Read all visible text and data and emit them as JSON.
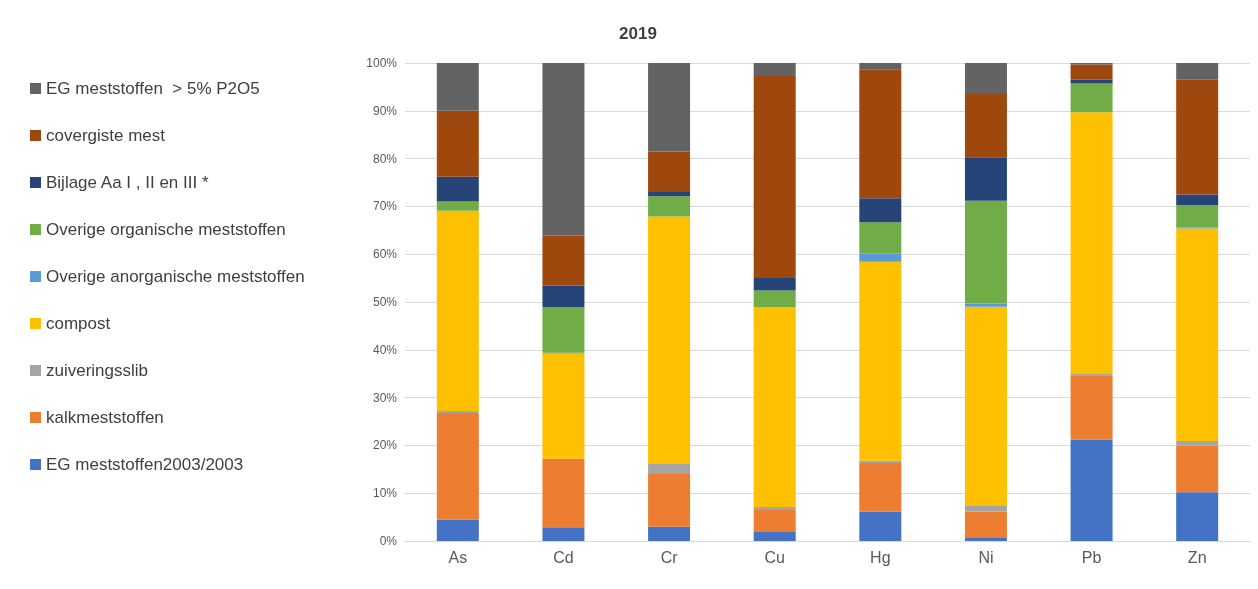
{
  "chart_data": {
    "type": "bar",
    "title": "2019",
    "stacked": true,
    "categories": [
      "As",
      "Cd",
      "Cr",
      "Cu",
      "Hg",
      "Ni",
      "Pb",
      "Zn"
    ],
    "series": [
      {
        "name": "EG meststoffen2003/2003",
        "color": "#4472c4",
        "values": [
          4.5,
          2.9,
          3.0,
          1.9,
          6.1,
          0.8,
          21.2,
          10.2
        ]
      },
      {
        "name": "kalkmeststoffen",
        "color": "#ed7d31",
        "values": [
          22.3,
          14.3,
          11.0,
          4.6,
          10.2,
          5.3,
          13.5,
          9.8
        ]
      },
      {
        "name": "zuiveringsslib",
        "color": "#a5a5a5",
        "values": [
          0.4,
          null,
          2.1,
          0.6,
          0.5,
          1.4,
          0.4,
          0.9
        ]
      },
      {
        "name": "compost",
        "color": "#ffc000",
        "values": [
          41.9,
          22.0,
          51.8,
          41.8,
          41.6,
          41.5,
          54.6,
          44.5
        ]
      },
      {
        "name": "Overige anorganische meststoffen",
        "color": "#5b9bd5",
        "values": [
          0,
          0.2,
          null,
          null,
          1.7,
          0.7,
          0,
          0.2
        ]
      },
      {
        "name": "Overige organische meststoffen",
        "color": "#70ad47",
        "values": [
          1.9,
          9.5,
          4.2,
          3.5,
          6.6,
          21.5,
          6.0,
          4.7
        ]
      },
      {
        "name": "Bijlage Aa I , II en III *",
        "color": "#264478",
        "values": [
          5.2,
          4.5,
          0.9,
          2.6,
          5.0,
          9.1,
          0.8,
          2.2
        ]
      },
      {
        "name": "covergiste mest",
        "color": "#9e480e",
        "values": [
          13.8,
          10.5,
          8.5,
          42.3,
          27.0,
          13.2,
          3.2,
          24.0
        ]
      },
      {
        "name": "EG meststoffen  > 5% P2O5",
        "color": "#636363",
        "values": [
          10.0,
          36.1,
          18.5,
          2.7,
          1.3,
          6.5,
          0.3,
          3.5
        ]
      }
    ],
    "ylim": [
      0,
      100
    ],
    "yticks": [
      {
        "value": 0,
        "label": "0%"
      },
      {
        "value": 10,
        "label": "10%"
      },
      {
        "value": 20,
        "label": "20%"
      },
      {
        "value": 30,
        "label": "30%"
      },
      {
        "value": 40,
        "label": "40%"
      },
      {
        "value": 50,
        "label": "50%"
      },
      {
        "value": 60,
        "label": "60%"
      },
      {
        "value": 70,
        "label": "70%"
      },
      {
        "value": 80,
        "label": "80%"
      },
      {
        "value": 90,
        "label": "90%"
      },
      {
        "value": 100,
        "label": "100%"
      }
    ],
    "grid": "y",
    "legend": "left"
  }
}
